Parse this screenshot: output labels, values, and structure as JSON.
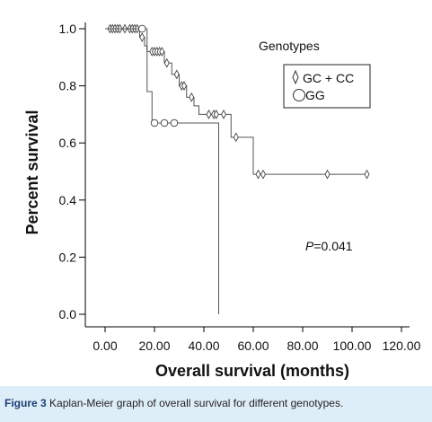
{
  "chart_data": {
    "type": "line",
    "subtype": "kaplan-meier step",
    "title": "",
    "xlabel": "Overall survival (months)",
    "ylabel": "Percent survival",
    "xlim": [
      0,
      120
    ],
    "ylim": [
      0,
      1
    ],
    "xticks": [
      "0.00",
      "20.00",
      "40.00",
      "60.00",
      "80.00",
      "100.00",
      "120.00"
    ],
    "yticks": [
      "0.0",
      "0.2",
      "0.4",
      "0.6",
      "0.8",
      "1.0"
    ],
    "xtick_values": [
      0,
      20,
      40,
      60,
      80,
      100,
      120
    ],
    "ytick_values": [
      0,
      0.2,
      0.4,
      0.6,
      0.8,
      1.0
    ],
    "grid": false,
    "legend": {
      "title": "Genotypes",
      "placement": "top-right",
      "entries": [
        "GC + CC",
        "GG"
      ]
    },
    "annotation": {
      "p_label": "P",
      "p_value": "=0.041"
    },
    "series": [
      {
        "name": "GC + CC",
        "marker": "diamond",
        "color": "#555555",
        "steps": [
          [
            0,
            1.0
          ],
          [
            14,
            0.97
          ],
          [
            16,
            0.94
          ],
          [
            17,
            0.92
          ],
          [
            24,
            0.88
          ],
          [
            27,
            0.84
          ],
          [
            30,
            0.8
          ],
          [
            33,
            0.76
          ],
          [
            36,
            0.73
          ],
          [
            38,
            0.7
          ],
          [
            51,
            0.62
          ],
          [
            60,
            0.49
          ]
        ],
        "end_x": 106,
        "censored": [
          [
            2,
            1.0
          ],
          [
            3,
            1.0
          ],
          [
            4,
            1.0
          ],
          [
            5,
            1.0
          ],
          [
            6,
            1.0
          ],
          [
            8,
            1.0
          ],
          [
            10,
            1.0
          ],
          [
            11,
            1.0
          ],
          [
            12,
            1.0
          ],
          [
            13,
            1.0
          ],
          [
            15,
            0.97
          ],
          [
            19,
            0.92
          ],
          [
            20,
            0.92
          ],
          [
            21,
            0.92
          ],
          [
            22,
            0.92
          ],
          [
            23,
            0.92
          ],
          [
            25,
            0.88
          ],
          [
            29,
            0.84
          ],
          [
            31,
            0.8
          ],
          [
            32,
            0.8
          ],
          [
            35,
            0.76
          ],
          [
            42,
            0.7
          ],
          [
            44,
            0.7
          ],
          [
            45,
            0.7
          ],
          [
            48,
            0.7
          ],
          [
            53,
            0.62
          ],
          [
            62,
            0.49
          ],
          [
            64,
            0.49
          ],
          [
            90,
            0.49
          ],
          [
            106,
            0.49
          ]
        ]
      },
      {
        "name": "GG",
        "marker": "circle",
        "color": "#555555",
        "steps": [
          [
            0,
            1.0
          ],
          [
            17,
            0.78
          ],
          [
            19,
            0.67
          ],
          [
            46,
            0.0
          ]
        ],
        "end_x": 46,
        "censored": [
          [
            15,
            1.0
          ],
          [
            20,
            0.67
          ],
          [
            24,
            0.67
          ],
          [
            28,
            0.67
          ]
        ]
      }
    ]
  },
  "caption": {
    "label": "Figure 3",
    "text": " Kaplan-Meier graph of overall survival for different genotypes."
  },
  "colors": {
    "axis": "#000000",
    "line": "#555555",
    "caption_bg": "#ddeef8",
    "caption_label": "#1a3e73"
  }
}
